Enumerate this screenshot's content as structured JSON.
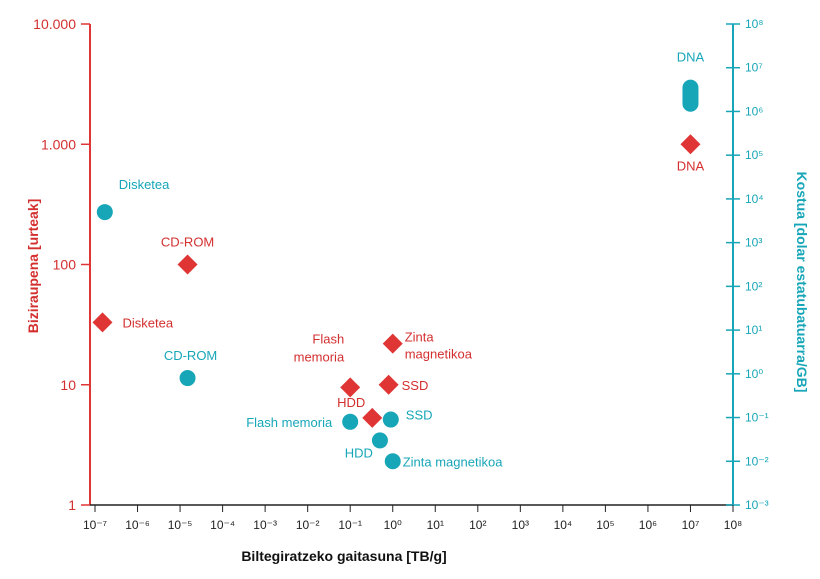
{
  "chart_data": {
    "type": "scatter",
    "title": "",
    "xlabel": "Biltegiratzeko gaitasuna [TB/g]",
    "ylabel_left": "Biziraupena [urteak]",
    "ylabel_right": "Kostua [dolar estatubatuarra/GB]",
    "x_scale": "log",
    "xlim_exp": [
      -7,
      8
    ],
    "y_left_ticks": [
      {
        "value": 1,
        "label": "1"
      },
      {
        "value": 10,
        "label": "10"
      },
      {
        "value": 100,
        "label": "100"
      },
      {
        "value": 1000,
        "label": "1.000"
      },
      {
        "value": 10000,
        "label": "10.000"
      }
    ],
    "y_right_exp": [
      -3,
      8
    ],
    "colors": {
      "lifetime": "#e03535",
      "cost": "#17a6b8",
      "axis_left": "#e03535",
      "axis_right": "#17a6b8"
    },
    "series": [
      {
        "name": "Biziraupena",
        "axis": "left",
        "marker": "diamond",
        "points": [
          {
            "label": "Disketea",
            "x": 1.5e-07,
            "y": 33
          },
          {
            "label": "CD-ROM",
            "x": 1.5e-05,
            "y": 100
          },
          {
            "label": "Flash memoria",
            "x": 0.1,
            "y": 9.5
          },
          {
            "label": "HDD",
            "x": 0.33,
            "y": 5.3
          },
          {
            "label": "SSD",
            "x": 0.8,
            "y": 10
          },
          {
            "label": "Zinta magnetikoa",
            "x": 1.0,
            "y": 22
          },
          {
            "label": "DNA",
            "x": 10000000.0,
            "y": 1000
          }
        ]
      },
      {
        "name": "Kostua",
        "axis": "right",
        "marker": "circle",
        "points": [
          {
            "label": "Disketea",
            "x": 1.7e-07,
            "y": 5000
          },
          {
            "label": "CD-ROM",
            "x": 1.5e-05,
            "y": 0.8
          },
          {
            "label": "Flash memoria",
            "x": 0.1,
            "y": 0.08
          },
          {
            "label": "HDD",
            "x": 0.5,
            "y": 0.03
          },
          {
            "label": "SSD",
            "x": 0.9,
            "y": 0.09
          },
          {
            "label": "Zinta magnetikoa",
            "x": 1.0,
            "y": 0.01
          },
          {
            "label": "DNA",
            "x": 10000000.0,
            "y": 1500000,
            "y_high": 3500000
          }
        ]
      }
    ]
  }
}
